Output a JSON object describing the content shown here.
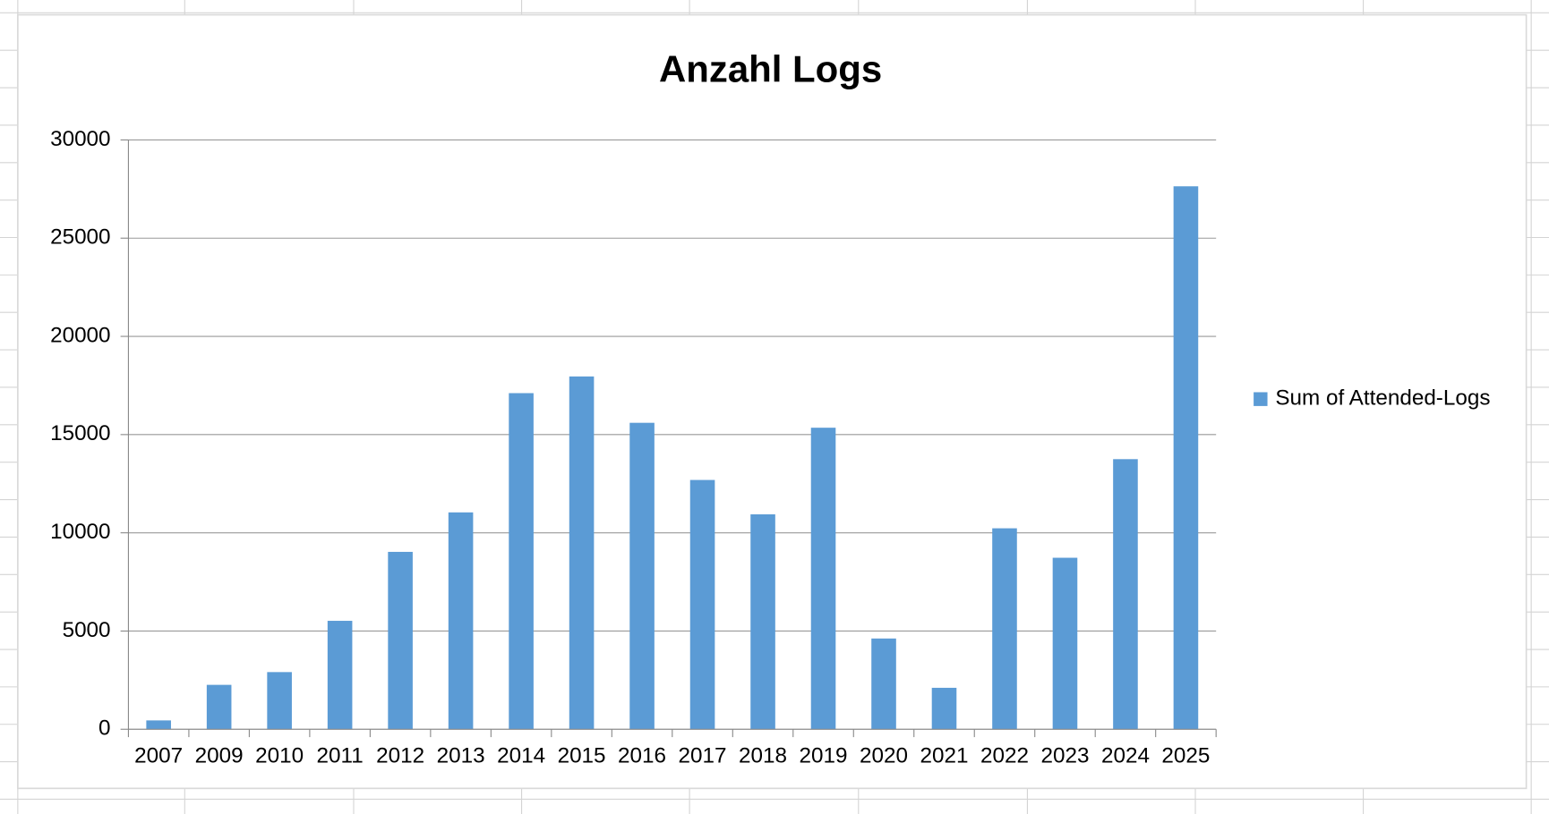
{
  "chart_data": {
    "type": "bar",
    "title": "Anzahl Logs",
    "categories": [
      "2007",
      "2009",
      "2010",
      "2011",
      "2012",
      "2013",
      "2014",
      "2015",
      "2016",
      "2017",
      "2018",
      "2019",
      "2020",
      "2021",
      "2022",
      "2023",
      "2024",
      "2025"
    ],
    "series": [
      {
        "name": "Sum of Attended-Logs",
        "color": "#5b9bd5",
        "values": [
          450,
          2260,
          2910,
          5520,
          9030,
          11040,
          17110,
          17960,
          15600,
          12690,
          10940,
          15350,
          4620,
          2110,
          10230,
          8730,
          13750,
          27640
        ]
      }
    ],
    "ylim": [
      0,
      30000
    ],
    "yticks": [
      0,
      5000,
      10000,
      15000,
      20000,
      25000,
      30000
    ],
    "grid": true,
    "legend": "right"
  }
}
